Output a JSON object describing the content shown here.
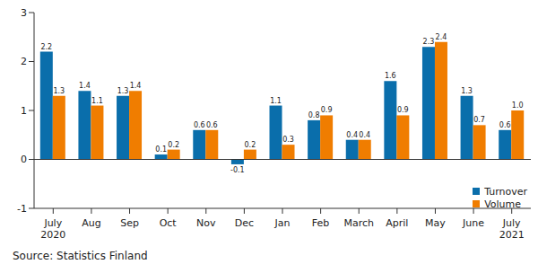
{
  "chart_data": {
    "type": "bar",
    "source": "Source: Statistics Finland",
    "categories": [
      "July\n2020",
      "Aug",
      "Sep",
      "Oct",
      "Nov",
      "Dec",
      "Jan",
      "Feb",
      "March",
      "April",
      "May",
      "June",
      "July\n2021"
    ],
    "series": [
      {
        "name": "Turnover",
        "color": "#0a6eab",
        "values": [
          2.2,
          1.4,
          1.3,
          0.1,
          0.6,
          -0.1,
          1.1,
          0.8,
          0.4,
          1.6,
          2.3,
          1.3,
          0.6
        ],
        "value_labels": [
          "2.2",
          "1.4",
          "1.3",
          "0.1",
          "0.6",
          "-0.1",
          "1.1",
          "0.8",
          "0.4",
          "1.6",
          "2.3",
          "1.3",
          "0.6"
        ]
      },
      {
        "name": "Volume",
        "color": "#f07d00",
        "values": [
          1.3,
          1.1,
          1.4,
          0.2,
          0.6,
          0.2,
          0.3,
          0.9,
          0.4,
          0.9,
          2.4,
          0.7,
          1.0
        ],
        "value_labels": [
          "1.3",
          "1.1",
          "1.4",
          "0.2",
          "0.6",
          "0.2",
          "0.3",
          "0.9",
          "0.4",
          "0.9",
          "2.4",
          "0.7",
          "1.0"
        ]
      }
    ],
    "ylim": [
      -1,
      3
    ],
    "yticks": [
      -1,
      0,
      1,
      2,
      3
    ],
    "grid": false,
    "data_labels": true,
    "legend": "lower right"
  }
}
